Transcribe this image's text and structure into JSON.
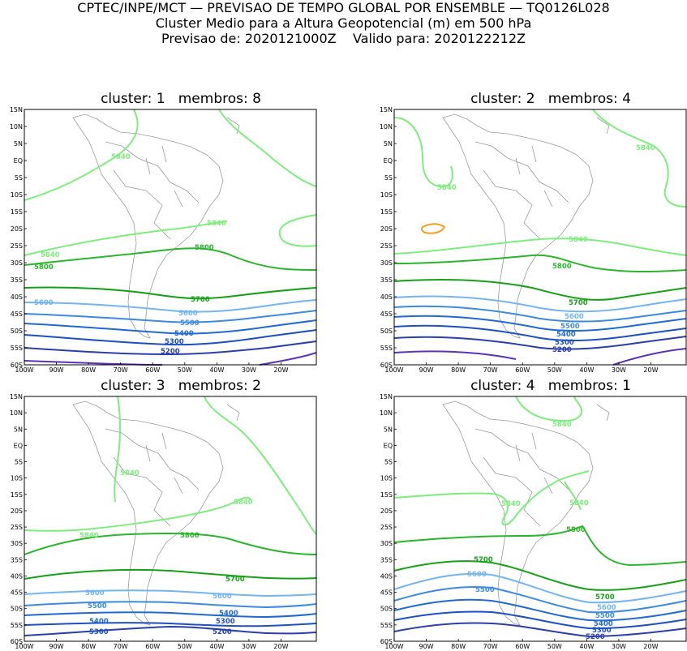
{
  "header": {
    "line1": "CPTEC/INPE/MCT — PREVISAO DE TEMPO GLOBAL POR ENSEMBLE — TQ0126L028",
    "line2": "Cluster Medio para a Altura Geopotencial (m) em 500 hPa",
    "line3": "Previsao de: 2020121000Z    Valido para: 2020122212Z"
  },
  "axes": {
    "lat_labels": [
      "15N",
      "10N",
      "5N",
      "EQ",
      "5S",
      "10S",
      "15S",
      "20S",
      "25S",
      "30S",
      "35S",
      "40S",
      "45S",
      "50S",
      "55S",
      "60S"
    ],
    "lon_labels": [
      "100W",
      "90W",
      "80W",
      "70W",
      "60W",
      "50W",
      "40W",
      "30W",
      "20W"
    ]
  },
  "colors": {
    "c5840": "#7ded7d",
    "c5800": "#2db42d",
    "c5700": "#17a017",
    "c5600": "#74b4ef",
    "c5500": "#3a8ae0",
    "c5400": "#1f6ad0",
    "c5300": "#1d4fbf",
    "c5200": "#2a3fa8",
    "c5100": "#5a32b4",
    "anomaly": "#f0a020",
    "coast": "#9a9a9a"
  },
  "panels": [
    {
      "title": "cluster: 1   membros: 8"
    },
    {
      "title": "cluster: 2   membros: 4"
    },
    {
      "title": "cluster: 3   membros: 2"
    },
    {
      "title": "cluster: 4   membros: 1"
    }
  ],
  "contour_labels": {
    "p1": [
      "5840",
      "5840",
      "5840",
      "5800",
      "5800",
      "5700",
      "5600",
      "5600",
      "5500",
      "5400",
      "5300",
      "5200"
    ],
    "p2": [
      "5840",
      "5840",
      "5840",
      "5800",
      "5700",
      "5600",
      "5500",
      "5400",
      "5300",
      "5200"
    ],
    "p3": [
      "5840",
      "5840",
      "5840",
      "5800",
      "5700",
      "5600",
      "5600",
      "5500",
      "5400",
      "5400",
      "5300",
      "5300",
      "5200"
    ],
    "p4": [
      "5840",
      "5840",
      "5840",
      "5800",
      "5700",
      "5700",
      "5600",
      "5600",
      "5500",
      "5500",
      "5400",
      "5300",
      "5200"
    ]
  }
}
